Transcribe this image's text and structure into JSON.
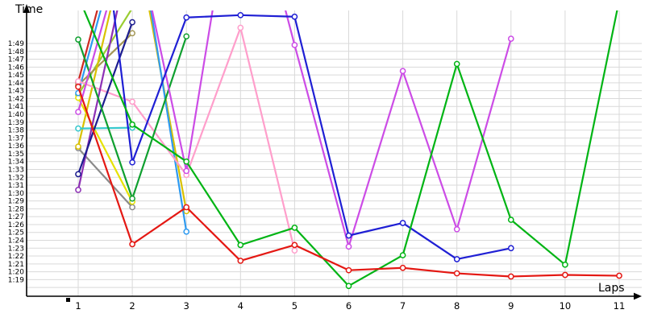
{
  "chart_data": {
    "type": "line",
    "title": "",
    "xlabel": "Laps",
    "ylabel": "Time",
    "x_ticks": [
      "1",
      "2",
      "3",
      "4",
      "5",
      "6",
      "7",
      "8",
      "9",
      "10",
      "11"
    ],
    "y_ticks": [
      "1:49",
      "1:48",
      "1:47",
      "1:46",
      "1:45",
      "1:44",
      "1:43",
      "1:42",
      "1:41",
      "1:40",
      "1:39",
      "1:38",
      "1:37",
      "1:36",
      "1:35",
      "1:34",
      "1:33",
      "1:32",
      "1:31",
      "1:30",
      "1:29",
      "1:28",
      "1:27",
      "1:26",
      "1:25",
      "1:24",
      "1:23",
      "1:22",
      "1:21",
      "1:20",
      "1:19"
    ],
    "y_axis": {
      "visible_min": "1:19",
      "visible_max": "1:49",
      "grid": true
    },
    "legend": "none",
    "colors": {
      "grid": "#d9d9d9",
      "axis": "#000000",
      "background": "#ffffff"
    },
    "series": [
      {
        "name": "yellowgreen",
        "color": "#9acd32",
        "points": [
          {
            "lap": 1,
            "time": "1:42.5"
          },
          {
            "lap": 2,
            "time": "1:53.5",
            "est": true
          }
        ]
      },
      {
        "name": "darkred",
        "color": "#cc2a20",
        "points": [
          {
            "lap": 1,
            "time": "1:44.1"
          },
          {
            "lap": 2,
            "time": "2:10",
            "est": true
          }
        ]
      },
      {
        "name": "darkkhaki",
        "color": "#a39655",
        "points": [
          {
            "lap": 1,
            "time": "1:43.7"
          },
          {
            "lap": 2,
            "time": "1:50.3"
          }
        ]
      },
      {
        "name": "gray",
        "color": "#8a8a8a",
        "points": [
          {
            "lap": 1,
            "time": "1:35.7"
          },
          {
            "lap": 2,
            "time": "1:28.2"
          }
        ]
      },
      {
        "name": "gold",
        "color": "#d9c100",
        "points": [
          {
            "lap": 1,
            "time": "1:35.9"
          },
          {
            "lap": 2,
            "time": "2:05",
            "est": true
          },
          {
            "lap": 3,
            "time": "1:27.7"
          }
        ]
      },
      {
        "name": "yellow",
        "color": "#e6e200",
        "points": [
          {
            "lap": 1,
            "time": "1:42.1"
          },
          {
            "lap": 2,
            "time": "1:28.9"
          }
        ]
      },
      {
        "name": "dodgerblue",
        "color": "#2e9af0",
        "points": [
          {
            "lap": 1,
            "time": "1:42.7"
          },
          {
            "lap": 2,
            "time": "2:08",
            "est": true
          },
          {
            "lap": 3,
            "time": "1:25.1"
          }
        ]
      },
      {
        "name": "cyan",
        "color": "#35c8cd",
        "points": [
          {
            "lap": 1,
            "time": "1:38.2"
          },
          {
            "lap": 2,
            "time": "1:38.3"
          }
        ]
      },
      {
        "name": "pink",
        "color": "#ff9ecb",
        "points": [
          {
            "lap": 1,
            "time": "1:44.2"
          },
          {
            "lap": 2,
            "time": "1:41.6"
          },
          {
            "lap": 3,
            "time": "1:32.3"
          },
          {
            "lap": 4,
            "time": "1:51.0"
          },
          {
            "lap": 5,
            "time": "1:22.7"
          }
        ]
      },
      {
        "name": "purple",
        "color": "#8d30b5",
        "points": [
          {
            "lap": 1,
            "time": "1:30.4"
          },
          {
            "lap": 2,
            "time": "2:02",
            "est": true
          }
        ]
      },
      {
        "name": "navy",
        "color": "#1c1c8f",
        "points": [
          {
            "lap": 1,
            "time": "1:32.4"
          },
          {
            "lap": 2,
            "time": "1:51.7"
          }
        ]
      },
      {
        "name": "seagreen",
        "color": "#0f9f2f",
        "points": [
          {
            "lap": 1,
            "time": "1:49.5"
          },
          {
            "lap": 2,
            "time": "1:29.3"
          },
          {
            "lap": 3,
            "time": "1:49.9"
          }
        ]
      },
      {
        "name": "orchid",
        "color": "#cc4ce6",
        "points": [
          {
            "lap": 1,
            "time": "1:40.3"
          },
          {
            "lap": 2,
            "time": "2:05",
            "est": true
          },
          {
            "lap": 3,
            "time": "1:32.8"
          },
          {
            "lap": 4,
            "time": "2:15",
            "est": true
          },
          {
            "lap": 5,
            "time": "1:48.8"
          },
          {
            "lap": 6,
            "time": "1:23.2"
          },
          {
            "lap": 7,
            "time": "1:45.5"
          },
          {
            "lap": 8,
            "time": "1:25.4"
          },
          {
            "lap": 9,
            "time": "1:49.6"
          }
        ]
      },
      {
        "name": "blue",
        "color": "#1f1fd4",
        "points": [
          {
            "lap": 1,
            "time": "2:30",
            "est": true
          },
          {
            "lap": 2,
            "time": "1:33.9"
          },
          {
            "lap": 3,
            "time": "1:52.3"
          },
          {
            "lap": 4,
            "time": "1:52.6"
          },
          {
            "lap": 5,
            "time": "1:52.4"
          },
          {
            "lap": 6,
            "time": "1:24.6"
          },
          {
            "lap": 7,
            "time": "1:26.2"
          },
          {
            "lap": 8,
            "time": "1:21.6"
          },
          {
            "lap": 9,
            "time": "1:23.0"
          }
        ]
      },
      {
        "name": "green",
        "color": "#00b414",
        "points": [
          {
            "lap": 1,
            "time": "1:55",
            "est": true
          },
          {
            "lap": 2,
            "time": "1:38.7"
          },
          {
            "lap": 3,
            "time": "1:34.0"
          },
          {
            "lap": 4,
            "time": "1:23.4"
          },
          {
            "lap": 5,
            "time": "1:25.6"
          },
          {
            "lap": 6,
            "time": "1:18.2"
          },
          {
            "lap": 7,
            "time": "1:22.1"
          },
          {
            "lap": 8,
            "time": "1:46.4"
          },
          {
            "lap": 9,
            "time": "1:26.6"
          },
          {
            "lap": 10,
            "time": "1:20.9"
          },
          {
            "lap": 11,
            "time": "1:54.5",
            "est": true
          }
        ]
      },
      {
        "name": "red",
        "color": "#e41813",
        "points": [
          {
            "lap": 1,
            "time": "1:43.5"
          },
          {
            "lap": 2,
            "time": "1:23.5"
          },
          {
            "lap": 3,
            "time": "1:28.2"
          },
          {
            "lap": 4,
            "time": "1:21.4"
          },
          {
            "lap": 5,
            "time": "1:23.4"
          },
          {
            "lap": 6,
            "time": "1:20.2"
          },
          {
            "lap": 7,
            "time": "1:20.5"
          },
          {
            "lap": 8,
            "time": "1:19.8"
          },
          {
            "lap": 9,
            "time": "1:19.4"
          },
          {
            "lap": 10,
            "time": "1:19.6"
          },
          {
            "lap": 11,
            "time": "1:19.5"
          }
        ]
      }
    ]
  }
}
